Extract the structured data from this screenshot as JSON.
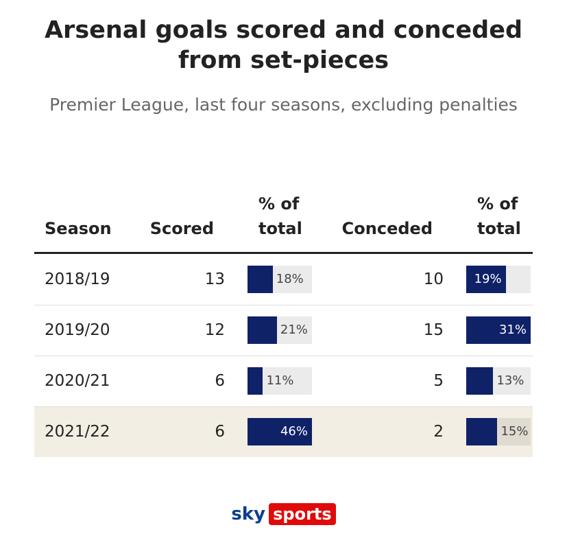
{
  "header": {
    "title": "Arsenal goals scored and conceded from set-pieces",
    "subtitle": "Premier League, last four seasons, excluding penalties"
  },
  "table": {
    "columns": [
      "Season",
      "Scored",
      "% of total",
      "Conceded",
      "% of total"
    ],
    "rows": [
      {
        "season": "2018/19",
        "scored": 13,
        "scored_pct": {
          "value": 18,
          "label": "18%"
        },
        "conceded": 10,
        "conceded_pct": {
          "value": 19,
          "label": "19%"
        }
      },
      {
        "season": "2019/20",
        "scored": 12,
        "scored_pct": {
          "value": 21,
          "label": "21%"
        },
        "conceded": 15,
        "conceded_pct": {
          "value": 31,
          "label": "31%"
        }
      },
      {
        "season": "2020/21",
        "scored": 6,
        "scored_pct": {
          "value": 11,
          "label": "11%"
        },
        "conceded": 5,
        "conceded_pct": {
          "value": 13,
          "label": "13%"
        }
      },
      {
        "season": "2021/22",
        "scored": 6,
        "scored_pct": {
          "value": 46,
          "label": "46%"
        },
        "conceded": 2,
        "conceded_pct": {
          "value": 15,
          "label": "15%"
        }
      }
    ],
    "bar_color": "#0f2167",
    "highlight_row": 3
  },
  "logo": {
    "brand": "sky",
    "product": "sports"
  }
}
